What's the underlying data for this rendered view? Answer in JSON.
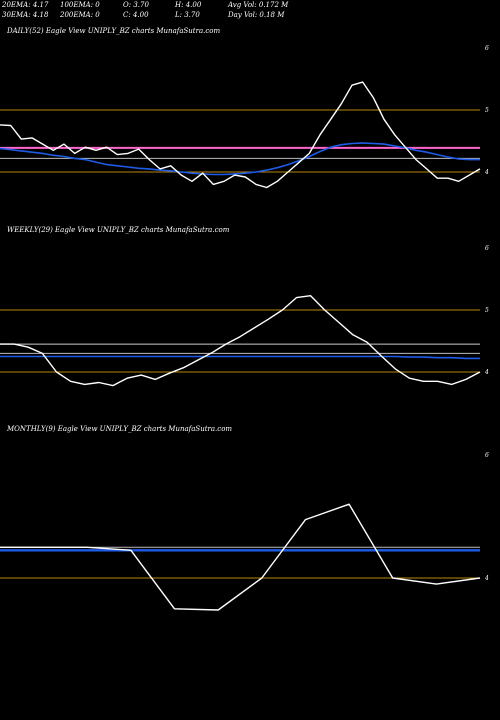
{
  "header": {
    "row1": {
      "ema20": "20EMA: 4.17",
      "ema100": "100EMA: 0",
      "open": "O: 3.70",
      "high": "H: 4.00",
      "avgvol": "Avg Vol: 0.172  M"
    },
    "row2": {
      "ema30": "30EMA: 4.18",
      "ema200": "200EMA: 0",
      "close": "C: 4.00",
      "low": "L: 3.70",
      "dayvol": "Day Vol: 0.18  M"
    }
  },
  "chart_data": [
    {
      "type": "line",
      "title": "DAILY(52) Eagle  View  UNIPLY_BZ charts MunafaSutra.com",
      "ylim": [
        3.7,
        6.3
      ],
      "yticks": [
        {
          "v": 6,
          "label": "6"
        },
        {
          "v": 5,
          "label": "5"
        },
        {
          "v": 4,
          "label": "4"
        }
      ],
      "guides": [
        {
          "y": 5.0,
          "color": "#b8860b"
        },
        {
          "y": 4.0,
          "color": "#b8860b"
        },
        {
          "y": 4.39,
          "color": "#ff66cc"
        },
        {
          "y": 4.22,
          "color": "#bbbbbb"
        }
      ],
      "series": [
        {
          "color": "#ffffff",
          "width": 1.4,
          "values": [
            4.76,
            4.75,
            4.53,
            4.55,
            4.45,
            4.35,
            4.45,
            4.3,
            4.4,
            4.35,
            4.4,
            4.28,
            4.3,
            4.37,
            4.2,
            4.05,
            4.1,
            3.95,
            3.85,
            3.98,
            3.8,
            3.85,
            3.95,
            3.92,
            3.8,
            3.75,
            3.85,
            4.0,
            4.15,
            4.3,
            4.6,
            4.85,
            5.1,
            5.4,
            5.45,
            5.2,
            4.85,
            4.6,
            4.4,
            4.2,
            4.05,
            3.9,
            3.9,
            3.85,
            3.95,
            4.05
          ]
        },
        {
          "color": "#1e5be8",
          "width": 1.6,
          "values": [
            4.38,
            4.36,
            4.34,
            4.32,
            4.3,
            4.27,
            4.25,
            4.22,
            4.2,
            4.16,
            4.12,
            4.1,
            4.08,
            4.06,
            4.05,
            4.03,
            4.02,
            4.0,
            3.98,
            3.97,
            3.96,
            3.96,
            3.97,
            3.98,
            4.0,
            4.03,
            4.07,
            4.12,
            4.18,
            4.25,
            4.33,
            4.4,
            4.44,
            4.46,
            4.47,
            4.46,
            4.45,
            4.42,
            4.39,
            4.35,
            4.32,
            4.28,
            4.24,
            4.21,
            4.2,
            4.2
          ]
        }
      ]
    },
    {
      "type": "line",
      "title": "WEEKLY(29) Eagle  View  UNIPLY_BZ charts MunafaSutra.com",
      "ylim": [
        3.7,
        6.3
      ],
      "yticks": [
        {
          "v": 6,
          "label": "6"
        },
        {
          "v": 5,
          "label": "5"
        },
        {
          "v": 4,
          "label": "4"
        }
      ],
      "guides": [
        {
          "y": 5.0,
          "color": "#b8860b"
        },
        {
          "y": 4.0,
          "color": "#b8860b"
        },
        {
          "y": 4.45,
          "color": "#cccccc"
        },
        {
          "y": 4.3,
          "color": "#bbbbbb"
        }
      ],
      "series": [
        {
          "color": "#ffffff",
          "width": 1.4,
          "values": [
            4.45,
            4.45,
            4.4,
            4.3,
            4.0,
            3.85,
            3.8,
            3.83,
            3.78,
            3.9,
            3.95,
            3.88,
            3.98,
            4.07,
            4.19,
            4.31,
            4.45,
            4.57,
            4.71,
            4.85,
            5.0,
            5.2,
            5.23,
            5.0,
            4.8,
            4.6,
            4.48,
            4.26,
            4.05,
            3.9,
            3.85,
            3.85,
            3.8,
            3.88,
            4.0
          ]
        },
        {
          "color": "#1e5be8",
          "width": 1.6,
          "values": [
            4.25,
            4.25,
            4.25,
            4.25,
            4.25,
            4.25,
            4.25,
            4.25,
            4.25,
            4.25,
            4.25,
            4.25,
            4.25,
            4.25,
            4.25,
            4.25,
            4.25,
            4.25,
            4.25,
            4.25,
            4.25,
            4.25,
            4.25,
            4.25,
            4.25,
            4.25,
            4.25,
            4.25,
            4.25,
            4.24,
            4.24,
            4.23,
            4.23,
            4.22,
            4.22
          ]
        }
      ]
    },
    {
      "type": "line",
      "title": "MONTHLY(9) Eagle  View  UNIPLY_BZ charts MunafaSutra.com",
      "ylim": [
        3.7,
        6.3
      ],
      "yticks": [
        {
          "v": 6,
          "label": "6"
        },
        {
          "v": 4,
          "label": "4"
        }
      ],
      "guides": [
        {
          "y": 4.0,
          "color": "#b8860b"
        },
        {
          "y": 4.5,
          "color": "#bbbbbb"
        }
      ],
      "series": [
        {
          "color": "#ffffff",
          "width": 1.4,
          "values": [
            4.5,
            4.5,
            4.5,
            4.45,
            3.5,
            3.48,
            4.0,
            4.95,
            5.2,
            4.0,
            3.9,
            4.0
          ]
        },
        {
          "color": "#1e5be8",
          "width": 2.4,
          "values": [
            4.45,
            4.45,
            4.45,
            4.45,
            4.45,
            4.45,
            4.45,
            4.45,
            4.45,
            4.45,
            4.45,
            4.45
          ]
        }
      ]
    }
  ]
}
